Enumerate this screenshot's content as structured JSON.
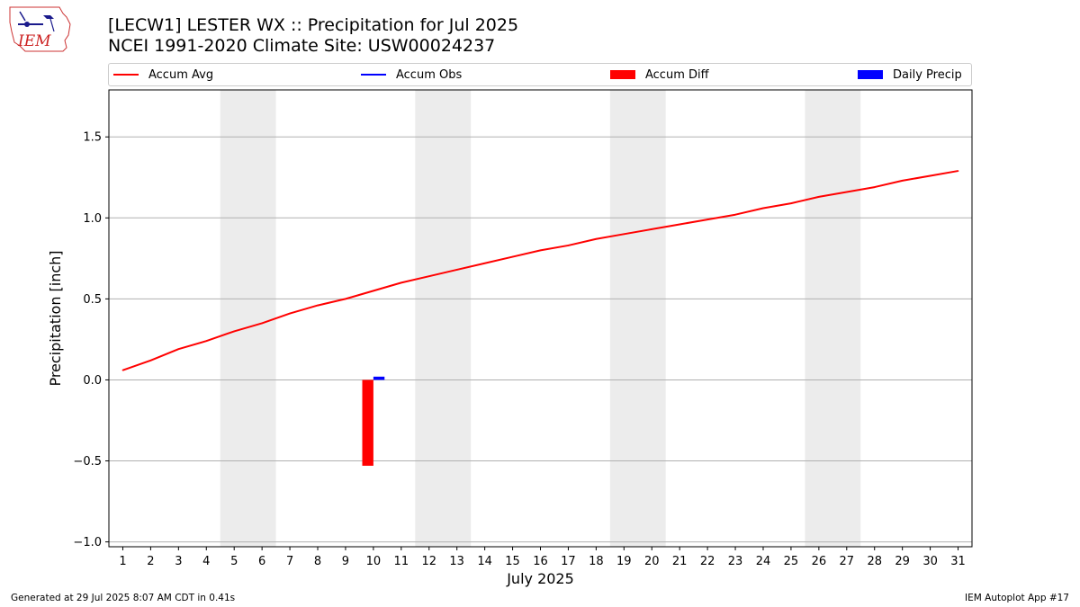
{
  "header": {
    "title_line1": "[LECW1] LESTER WX :: Precipitation for Jul 2025",
    "title_line2": "NCEI 1991-2020 Climate Site: USW00024237",
    "logo_text": "IEM"
  },
  "legend": {
    "items": [
      {
        "label": "Accum Avg",
        "kind": "line",
        "color": "#ff0000"
      },
      {
        "label": "Accum Obs",
        "kind": "line",
        "color": "#0000ff"
      },
      {
        "label": "Accum Diff",
        "kind": "patch",
        "color": "#ff0000"
      },
      {
        "label": "Daily Precip",
        "kind": "patch",
        "color": "#0000ff"
      }
    ]
  },
  "footer": {
    "left": "Generated at 29 Jul 2025 8:07 AM CDT in 0.41s",
    "right": "IEM Autoplot App #17"
  },
  "chart_data": {
    "type": "line",
    "xlabel": "July 2025",
    "ylabel": "Precipitation [inch]",
    "xlim": [
      0.5,
      31.5
    ],
    "ylim": [
      -1.03,
      1.79
    ],
    "yticks": [
      -1.0,
      -0.5,
      0.0,
      0.5,
      1.0,
      1.5
    ],
    "ytick_labels": [
      "−1.0",
      "−0.5",
      "0.0",
      "0.5",
      "1.0",
      "1.5"
    ],
    "x": [
      1,
      2,
      3,
      4,
      5,
      6,
      7,
      8,
      9,
      10,
      11,
      12,
      13,
      14,
      15,
      16,
      17,
      18,
      19,
      20,
      21,
      22,
      23,
      24,
      25,
      26,
      27,
      28,
      29,
      30,
      31
    ],
    "xtick_labels": [
      "1",
      "2",
      "3",
      "4",
      "5",
      "6",
      "7",
      "8",
      "9",
      "10",
      "11",
      "12",
      "13",
      "14",
      "15",
      "16",
      "17",
      "18",
      "19",
      "20",
      "21",
      "22",
      "23",
      "24",
      "25",
      "26",
      "27",
      "28",
      "29",
      "30",
      "31"
    ],
    "grid": "horizontal",
    "legend_position": "top",
    "weekend_bands": [
      [
        4.5,
        6.5
      ],
      [
        11.5,
        13.5
      ],
      [
        18.5,
        20.5
      ],
      [
        25.5,
        27.5
      ]
    ],
    "weekend_color": "#ececec",
    "series": [
      {
        "name": "Accum Avg",
        "type": "line",
        "color": "#ff0000",
        "values": [
          0.06,
          0.12,
          0.19,
          0.24,
          0.3,
          0.35,
          0.41,
          0.46,
          0.5,
          0.55,
          0.6,
          0.64,
          0.68,
          0.72,
          0.76,
          0.8,
          0.83,
          0.87,
          0.9,
          0.93,
          0.96,
          0.99,
          1.02,
          1.06,
          1.09,
          1.13,
          1.16,
          1.19,
          1.23,
          1.26,
          1.29
        ]
      },
      {
        "name": "Accum Diff",
        "type": "bar",
        "color": "#ff0000",
        "points": [
          {
            "x": 10,
            "value": -0.53
          }
        ]
      },
      {
        "name": "Daily Precip",
        "type": "bar",
        "color": "#0000ff",
        "points": [
          {
            "x": 10,
            "value": 0.02
          }
        ]
      }
    ]
  }
}
